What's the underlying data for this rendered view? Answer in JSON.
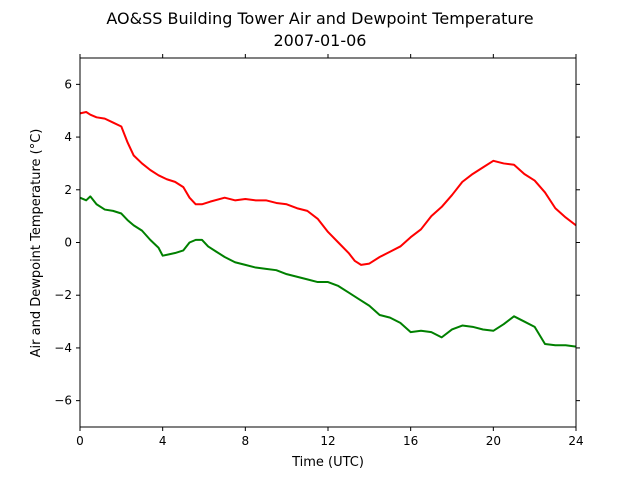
{
  "chart_data": {
    "type": "line",
    "title": "AO&SS Building Tower Air and Dewpoint Temperature",
    "subtitle": "2007-01-06",
    "xlabel": "Time (UTC)",
    "ylabel": "Air and Dewpoint Temperature (°C)",
    "xlim": [
      0,
      24
    ],
    "ylim": [
      -7,
      7
    ],
    "xticks": [
      0,
      4,
      8,
      12,
      16,
      20,
      24
    ],
    "yticks": [
      -6,
      -4,
      -2,
      0,
      2,
      4,
      6
    ],
    "grid": false,
    "series": [
      {
        "color": "#ff0000",
        "x": [
          0,
          0.3,
          0.5,
          0.8,
          1.2,
          1.6,
          2.0,
          2.3,
          2.6,
          3.0,
          3.4,
          3.8,
          4.2,
          4.6,
          5.0,
          5.3,
          5.6,
          5.9,
          6.3,
          7.0,
          7.5,
          8.0,
          8.5,
          9.0,
          9.5,
          10.0,
          10.5,
          11.0,
          11.5,
          12.0,
          12.5,
          13.0,
          13.3,
          13.6,
          14.0,
          14.5,
          15.0,
          15.5,
          16.0,
          16.5,
          17.0,
          17.5,
          18.0,
          18.5,
          19.0,
          19.5,
          20.0,
          20.5,
          21.0,
          21.5,
          22.0,
          22.5,
          23.0,
          23.5,
          24.0
        ],
        "y": [
          4.9,
          4.95,
          4.85,
          4.75,
          4.7,
          4.55,
          4.4,
          3.8,
          3.3,
          3.0,
          2.75,
          2.55,
          2.4,
          2.3,
          2.1,
          1.7,
          1.45,
          1.45,
          1.55,
          1.7,
          1.6,
          1.65,
          1.6,
          1.6,
          1.5,
          1.45,
          1.3,
          1.2,
          0.9,
          0.4,
          0.0,
          -0.4,
          -0.7,
          -0.85,
          -0.8,
          -0.55,
          -0.35,
          -0.15,
          0.2,
          0.5,
          1.0,
          1.35,
          1.8,
          2.3,
          2.6,
          2.85,
          3.1,
          3.0,
          2.95,
          2.6,
          2.35,
          1.9,
          1.3,
          0.95,
          0.65
        ]
      },
      {
        "color": "#008000",
        "x": [
          0,
          0.3,
          0.5,
          0.8,
          1.2,
          1.6,
          2.0,
          2.3,
          2.6,
          3.0,
          3.4,
          3.8,
          4.0,
          4.3,
          4.6,
          5.0,
          5.3,
          5.6,
          5.9,
          6.2,
          6.6,
          7.0,
          7.5,
          8.0,
          8.5,
          9.0,
          9.5,
          10.0,
          10.5,
          11.0,
          11.5,
          12.0,
          12.5,
          13.0,
          13.5,
          14.0,
          14.5,
          15.0,
          15.5,
          16.0,
          16.5,
          17.0,
          17.5,
          18.0,
          18.5,
          19.0,
          19.5,
          20.0,
          20.5,
          21.0,
          21.5,
          22.0,
          22.5,
          23.0,
          23.5,
          24.0
        ],
        "y": [
          1.7,
          1.6,
          1.75,
          1.45,
          1.25,
          1.2,
          1.1,
          0.85,
          0.65,
          0.45,
          0.1,
          -0.2,
          -0.5,
          -0.45,
          -0.4,
          -0.3,
          0.0,
          0.1,
          0.1,
          -0.15,
          -0.35,
          -0.55,
          -0.75,
          -0.85,
          -0.95,
          -1.0,
          -1.05,
          -1.2,
          -1.3,
          -1.4,
          -1.5,
          -1.5,
          -1.65,
          -1.9,
          -2.15,
          -2.4,
          -2.75,
          -2.85,
          -3.05,
          -3.4,
          -3.35,
          -3.4,
          -3.6,
          -3.3,
          -3.15,
          -3.2,
          -3.3,
          -3.35,
          -3.1,
          -2.8,
          -3.0,
          -3.2,
          -3.85,
          -3.9,
          -3.9,
          -3.95
        ]
      }
    ]
  }
}
